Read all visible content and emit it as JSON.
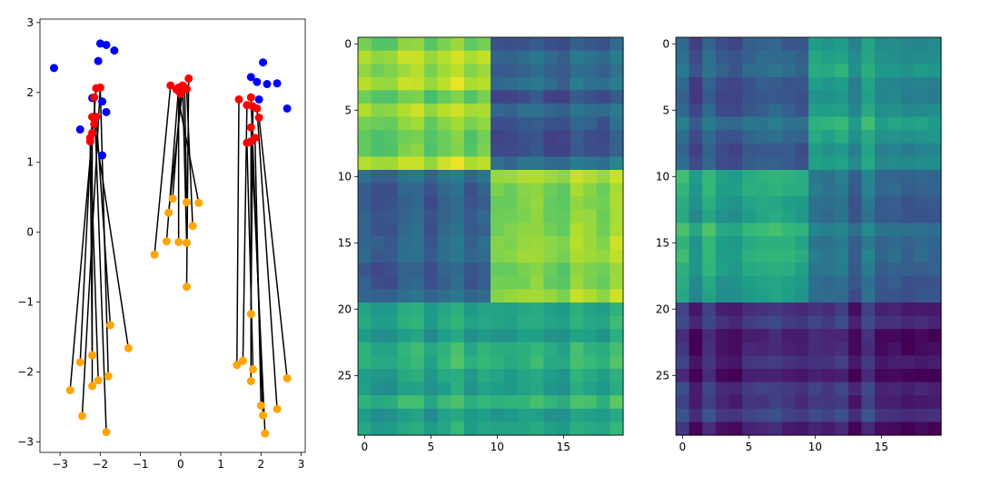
{
  "chart_data": [
    {
      "type": "scatter",
      "xlim": [
        -3.5,
        3.1
      ],
      "ylim": [
        -3.15,
        3.05
      ],
      "xticks": [
        -3,
        -2,
        -1,
        0,
        1,
        2,
        3
      ],
      "yticks": [
        -3,
        -2,
        -1,
        0,
        1,
        2,
        3
      ],
      "xtick_labels": [
        "−3",
        "−2",
        "−1",
        "0",
        "1",
        "2",
        "3"
      ],
      "ytick_labels": [
        "−3",
        "−2",
        "−1",
        "0",
        "1",
        "2",
        "3"
      ],
      "colors": {
        "blue": "#0000ff",
        "red": "#ff0000",
        "orange": "#ffa500",
        "line": "#000000"
      },
      "series": [
        {
          "name": "blue",
          "points": [
            [
              -3.15,
              2.35
            ],
            [
              -2.0,
              2.7
            ],
            [
              -1.85,
              2.68
            ],
            [
              -1.65,
              2.6
            ],
            [
              -2.05,
              2.45
            ],
            [
              -2.2,
              1.92
            ],
            [
              -1.95,
              1.87
            ],
            [
              -1.85,
              1.72
            ],
            [
              -2.5,
              1.47
            ],
            [
              -1.95,
              1.1
            ],
            [
              1.75,
              2.22
            ],
            [
              1.9,
              2.15
            ],
            [
              2.05,
              2.43
            ],
            [
              2.15,
              2.12
            ],
            [
              2.4,
              2.13
            ],
            [
              2.65,
              1.77
            ],
            [
              1.95,
              1.9
            ],
            [
              1.8,
              1.8
            ]
          ]
        },
        {
          "name": "red",
          "points": [
            [
              -2.1,
              2.06
            ],
            [
              -2.0,
              2.07
            ],
            [
              -2.15,
              1.93
            ],
            [
              -2.2,
              1.65
            ],
            [
              -2.1,
              1.65
            ],
            [
              -2.15,
              1.55
            ],
            [
              -2.2,
              1.42
            ],
            [
              -2.25,
              1.35
            ],
            [
              -2.25,
              1.3
            ],
            [
              -0.25,
              2.1
            ],
            [
              -0.05,
              2.07
            ],
            [
              0.05,
              2.05
            ],
            [
              0.0,
              1.98
            ],
            [
              0.2,
              2.2
            ],
            [
              0.1,
              2.07
            ],
            [
              -0.05,
              2.02
            ],
            [
              0.05,
              2.1
            ],
            [
              0.15,
              2.05
            ],
            [
              -0.1,
              2.04
            ],
            [
              1.45,
              1.9
            ],
            [
              1.65,
              1.82
            ],
            [
              1.75,
              1.93
            ],
            [
              1.9,
              1.77
            ],
            [
              1.8,
              1.8
            ],
            [
              1.95,
              1.64
            ],
            [
              1.75,
              1.5
            ],
            [
              1.85,
              1.35
            ],
            [
              1.65,
              1.28
            ],
            [
              1.75,
              1.3
            ]
          ]
        },
        {
          "name": "orange",
          "points": [
            [
              -2.75,
              -2.26
            ],
            [
              -2.45,
              -2.63
            ],
            [
              -2.5,
              -1.86
            ],
            [
              -2.2,
              -1.76
            ],
            [
              -2.2,
              -2.2
            ],
            [
              -2.05,
              -2.12
            ],
            [
              -1.85,
              -2.86
            ],
            [
              -1.8,
              -2.06
            ],
            [
              -1.75,
              -1.33
            ],
            [
              -1.3,
              -1.66
            ],
            [
              -0.65,
              -0.32
            ],
            [
              -0.35,
              -0.13
            ],
            [
              -0.3,
              0.28
            ],
            [
              -0.2,
              0.48
            ],
            [
              -0.05,
              -0.14
            ],
            [
              0.15,
              -0.15
            ],
            [
              0.15,
              0.43
            ],
            [
              0.15,
              -0.78
            ],
            [
              0.3,
              0.09
            ],
            [
              0.45,
              0.42
            ],
            [
              1.4,
              -1.9
            ],
            [
              1.55,
              -1.84
            ],
            [
              1.75,
              -1.17
            ],
            [
              1.8,
              -1.96
            ],
            [
              1.75,
              -2.13
            ],
            [
              2.0,
              -2.48
            ],
            [
              2.05,
              -2.62
            ],
            [
              2.1,
              -2.88
            ],
            [
              2.4,
              -2.53
            ],
            [
              2.65,
              -2.09
            ]
          ]
        }
      ],
      "lines": [
        [
          [
            -2.1,
            2.06
          ],
          [
            -2.75,
            -2.26
          ]
        ],
        [
          [
            -2.0,
            2.07
          ],
          [
            -2.45,
            -2.63
          ]
        ],
        [
          [
            -2.15,
            1.93
          ],
          [
            -1.85,
            -2.86
          ]
        ],
        [
          [
            -2.2,
            1.65
          ],
          [
            -2.5,
            -1.86
          ]
        ],
        [
          [
            -2.1,
            1.65
          ],
          [
            -1.75,
            -1.33
          ]
        ],
        [
          [
            -2.15,
            1.55
          ],
          [
            -1.3,
            -1.66
          ]
        ],
        [
          [
            -2.2,
            1.42
          ],
          [
            -2.2,
            -2.2
          ]
        ],
        [
          [
            -2.25,
            1.35
          ],
          [
            -2.05,
            -2.12
          ]
        ],
        [
          [
            -2.25,
            1.3
          ],
          [
            -2.2,
            -1.76
          ]
        ],
        [
          [
            -2.0,
            2.07
          ],
          [
            -1.8,
            -2.06
          ]
        ],
        [
          [
            -0.25,
            2.1
          ],
          [
            -0.65,
            -0.32
          ]
        ],
        [
          [
            -0.05,
            2.07
          ],
          [
            -0.35,
            -0.13
          ]
        ],
        [
          [
            0.05,
            2.05
          ],
          [
            -0.3,
            0.28
          ]
        ],
        [
          [
            0.0,
            1.98
          ],
          [
            -0.2,
            0.48
          ]
        ],
        [
          [
            0.2,
            2.2
          ],
          [
            0.15,
            -0.78
          ]
        ],
        [
          [
            0.1,
            2.07
          ],
          [
            0.15,
            0.43
          ]
        ],
        [
          [
            -0.05,
            2.02
          ],
          [
            -0.05,
            -0.14
          ]
        ],
        [
          [
            0.05,
            2.1
          ],
          [
            0.15,
            -0.15
          ]
        ],
        [
          [
            0.15,
            2.05
          ],
          [
            0.3,
            0.09
          ]
        ],
        [
          [
            -0.1,
            2.04
          ],
          [
            0.45,
            0.42
          ]
        ],
        [
          [
            1.45,
            1.9
          ],
          [
            1.4,
            -1.9
          ]
        ],
        [
          [
            1.65,
            1.82
          ],
          [
            1.55,
            -1.84
          ]
        ],
        [
          [
            1.75,
            1.93
          ],
          [
            2.05,
            -2.62
          ]
        ],
        [
          [
            1.9,
            1.77
          ],
          [
            2.4,
            -2.53
          ]
        ],
        [
          [
            1.8,
            1.8
          ],
          [
            1.75,
            -1.17
          ]
        ],
        [
          [
            1.95,
            1.64
          ],
          [
            2.65,
            -2.09
          ]
        ],
        [
          [
            1.75,
            1.5
          ],
          [
            2.1,
            -2.88
          ]
        ],
        [
          [
            1.85,
            1.35
          ],
          [
            2.0,
            -2.48
          ]
        ],
        [
          [
            1.65,
            1.28
          ],
          [
            1.8,
            -1.96
          ]
        ],
        [
          [
            1.75,
            1.3
          ],
          [
            1.75,
            -2.13
          ]
        ]
      ]
    },
    {
      "type": "heatmap",
      "colormap": "viridis",
      "rows": 30,
      "cols": 20,
      "vmin": 0,
      "vmax": 1,
      "xticks": [
        0,
        5,
        10,
        15
      ],
      "yticks": [
        0,
        5,
        10,
        15,
        20,
        25
      ],
      "xtick_labels": [
        "0",
        "5",
        "10",
        "15"
      ],
      "ytick_labels": [
        "0",
        "5",
        "10",
        "15",
        "20",
        "25"
      ],
      "blocks": [
        {
          "rows": [
            0,
            9
          ],
          "cols": [
            0,
            9
          ],
          "level": 0.83
        },
        {
          "rows": [
            0,
            9
          ],
          "cols": [
            10,
            19
          ],
          "level": 0.3
        },
        {
          "rows": [
            10,
            19
          ],
          "cols": [
            0,
            9
          ],
          "level": 0.3
        },
        {
          "rows": [
            10,
            19
          ],
          "cols": [
            10,
            19
          ],
          "level": 0.8
        },
        {
          "rows": [
            20,
            29
          ],
          "cols": [
            0,
            19
          ],
          "level": 0.6
        }
      ],
      "seed": 7
    },
    {
      "type": "heatmap",
      "colormap": "viridis",
      "rows": 30,
      "cols": 20,
      "vmin": 0,
      "vmax": 1,
      "xticks": [
        0,
        5,
        10,
        15
      ],
      "yticks": [
        0,
        5,
        10,
        15,
        20,
        25
      ],
      "xtick_labels": [
        "0",
        "5",
        "10",
        "15"
      ],
      "ytick_labels": [
        "0",
        "5",
        "10",
        "15",
        "20",
        "25"
      ],
      "blocks": [
        {
          "rows": [
            0,
            9
          ],
          "cols": [
            0,
            9
          ],
          "level": 0.3
        },
        {
          "rows": [
            0,
            9
          ],
          "cols": [
            10,
            19
          ],
          "level": 0.55
        },
        {
          "rows": [
            10,
            19
          ],
          "cols": [
            0,
            9
          ],
          "level": 0.58
        },
        {
          "rows": [
            10,
            19
          ],
          "cols": [
            10,
            19
          ],
          "level": 0.35
        },
        {
          "rows": [
            20,
            29
          ],
          "cols": [
            0,
            19
          ],
          "level": 0.12
        }
      ],
      "seed": 13
    }
  ]
}
